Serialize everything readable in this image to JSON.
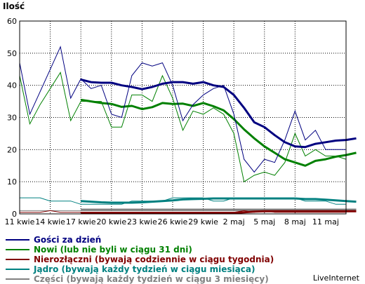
{
  "chart_data": {
    "type": "line",
    "ylabel": "Ilość",
    "ylim": [
      0,
      60
    ],
    "yticks": [
      "0",
      "10",
      "20",
      "30",
      "40",
      "50",
      "60"
    ],
    "xticks": [
      "11 kwie",
      "14 kwie",
      "17 kwie",
      "20 kwie",
      "23 kwie",
      "26 kwie",
      "29 kwie",
      "2 maj",
      "5 maj",
      "8 maj",
      "11 maj"
    ],
    "grid": true,
    "legend_position": "bottom-left",
    "brand": "LiveInternet",
    "series": [
      {
        "name": "Gości za dzień",
        "color": "#000080",
        "thin": [
          47,
          31,
          38,
          45,
          52,
          36,
          42,
          39,
          40,
          31,
          30,
          43,
          47,
          46,
          47,
          40,
          29,
          34,
          37,
          39,
          40,
          31,
          17,
          13,
          17,
          16,
          23,
          32,
          23,
          26,
          20,
          20,
          20
        ],
        "avg_start": 6,
        "avg": [
          41.8,
          41,
          40.8,
          40.8,
          40,
          39.5,
          38.8,
          39.5,
          40.5,
          41,
          41,
          40.5,
          41,
          40,
          39.5,
          37,
          33,
          28.5,
          27,
          24.5,
          22.3,
          21,
          20.8,
          21.8,
          22.3,
          22.8,
          23,
          23.5
        ]
      },
      {
        "name": "Nowi (lub nie byli w ciągu 31 dni)",
        "color": "#008000",
        "thin": [
          43,
          28,
          34,
          39,
          44,
          29,
          35,
          35,
          35,
          27,
          27,
          37,
          37,
          35,
          43,
          36,
          26,
          32,
          31,
          33,
          31,
          25,
          10,
          12,
          13,
          12,
          16,
          25,
          18,
          20,
          18,
          18,
          17
        ],
        "avg_start": 6,
        "avg": [
          35.5,
          35,
          34.5,
          34.2,
          33.3,
          33.6,
          32.6,
          33.2,
          34.5,
          34.2,
          34.3,
          33.6,
          34.5,
          33.5,
          32.2,
          29.5,
          26.3,
          23.5,
          21,
          19,
          17,
          16,
          15,
          16.5,
          17,
          17.8,
          18.3,
          19
        ]
      },
      {
        "name": "Nierozłączni (bywają codziennie w ciągu tygodnia)",
        "color": "#800000",
        "thin": [
          0.5,
          0.5,
          0.5,
          1,
          0.5,
          0.5,
          0.5,
          0.5,
          0.5,
          0.5,
          0.5,
          0.5,
          0.5,
          0.5,
          0.5,
          0.5,
          0.5,
          0.5,
          0.5,
          0.5,
          0.5,
          0.5,
          1,
          0.5,
          1,
          0.5,
          0.5,
          0.5,
          0.5,
          0.5,
          0.5,
          0.5,
          0.5
        ],
        "avg_start": 6,
        "avg": [
          0.3,
          0.3,
          0.3,
          0.3,
          0.3,
          0.3,
          0.3,
          0.3,
          0.3,
          0.3,
          0.3,
          0.3,
          0.3,
          0.3,
          0.3,
          0.3,
          0.5,
          0.7,
          0.8,
          0.8,
          0.8,
          0.8,
          0.8,
          0.8,
          0.8,
          0.8,
          0.8,
          0.8
        ]
      },
      {
        "name": "Jądro (bywają każdy tydzień w ciągu miesiąca)",
        "color": "#008080",
        "thin": [
          5,
          5,
          5,
          4,
          4,
          4,
          3,
          3,
          3,
          3,
          3,
          4,
          4,
          4,
          4,
          5,
          5,
          5,
          5,
          4,
          4,
          5,
          5,
          5,
          5,
          5,
          5,
          5,
          4,
          4,
          4,
          3,
          3
        ],
        "avg_start": 6,
        "avg": [
          4,
          3.8,
          3.6,
          3.5,
          3.5,
          3.5,
          3.6,
          3.8,
          4,
          4.2,
          4.5,
          4.6,
          4.7,
          4.8,
          4.8,
          4.8,
          4.8,
          4.8,
          4.8,
          4.8,
          4.8,
          4.8,
          4.6,
          4.6,
          4.4,
          4.2,
          4,
          3.8
        ]
      },
      {
        "name": "Części (bywają każdy tydzień w ciągu 3 miesięcy)",
        "color": "#808080",
        "thin": [
          1,
          1,
          1,
          1,
          1,
          1,
          1,
          1,
          1,
          1,
          1,
          1,
          1,
          1,
          1,
          1,
          1,
          1,
          1,
          1,
          1,
          1,
          1,
          1,
          1,
          1,
          1,
          1,
          1,
          1,
          1,
          1,
          1
        ],
        "avg_start": 6,
        "avg": [
          1.3,
          1.3,
          1.3,
          1.3,
          1.3,
          1.3,
          1.3,
          1.3,
          1.3,
          1.3,
          1.3,
          1.3,
          1.3,
          1.3,
          1.3,
          1.3,
          1.3,
          1.3,
          1.3,
          1.3,
          1.3,
          1.3,
          1.3,
          1.3,
          1.3,
          1.3,
          1.3,
          1.3
        ]
      }
    ]
  }
}
